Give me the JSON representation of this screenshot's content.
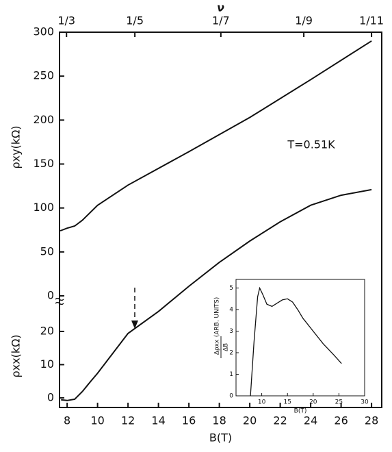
{
  "chart_data": [
    {
      "type": "line",
      "top_axis_label": "ν",
      "x_label": "B(T)",
      "y_label": "ρxy(kΩ)",
      "y2_label": "ρxx(kΩ)",
      "annotation": "T=0.51K",
      "xlim": [
        7.5,
        28.67
      ],
      "xticks": [
        8,
        10,
        12,
        14,
        16,
        18,
        20,
        22,
        24,
        26,
        28
      ],
      "x2ticks": [
        {
          "value": 7.96,
          "label": "1/3"
        },
        {
          "value": 12.45,
          "label": "1/5"
        },
        {
          "value": 18.1,
          "label": "1/7"
        },
        {
          "value": 23.55,
          "label": "1/9"
        },
        {
          "value": 28,
          "label": "1/11"
        }
      ],
      "ylim": [
        -127,
        300
      ],
      "yticks": [
        0,
        50,
        100,
        150,
        200,
        250,
        300
      ],
      "y2lim": [
        -2.9,
        110.1
      ],
      "y2ticks": [
        0,
        10,
        20
      ],
      "series": [
        {
          "color": "#111111",
          "x": [
            7.55,
            8,
            8.5,
            9,
            10,
            12,
            16,
            20,
            24,
            28
          ],
          "values": [
            74,
            77,
            79.5,
            86,
            103,
            126,
            164,
            203,
            246,
            290
          ]
        },
        {
          "color": "#111111",
          "axis": "y2",
          "x": [
            7.6,
            8,
            8.5,
            9,
            9.5,
            10,
            12,
            14,
            16,
            18,
            20,
            22,
            24,
            26,
            28
          ],
          "values": [
            -0.6,
            -0.8,
            -0.4,
            1.9,
            4.7,
            7.4,
            19.4,
            26,
            33.6,
            40.8,
            47.2,
            53,
            58,
            61,
            62.7
          ]
        }
      ]
    },
    {
      "type": "line",
      "x_label": "B(T)",
      "y_label": "Δρxx",
      "y_label_denominator": "ΔB",
      "y_label_units": "(ARB. UNITS)",
      "xlim": [
        5,
        30
      ],
      "xticks": [
        10,
        15,
        20,
        25,
        30
      ],
      "ylim": [
        0,
        5.4
      ],
      "yticks": [
        0,
        1,
        2,
        3,
        4,
        5
      ],
      "series": [
        {
          "color": "#111111",
          "x": [
            7.8,
            8.5,
            9.2,
            9.6,
            10.2,
            11,
            12,
            13,
            14,
            15,
            16,
            17,
            18,
            20,
            22,
            24,
            25.5
          ],
          "values": [
            0,
            2.5,
            4.6,
            5.0,
            4.7,
            4.25,
            4.15,
            4.3,
            4.45,
            4.5,
            4.35,
            4.0,
            3.6,
            3.0,
            2.4,
            1.9,
            1.5
          ]
        }
      ]
    }
  ]
}
